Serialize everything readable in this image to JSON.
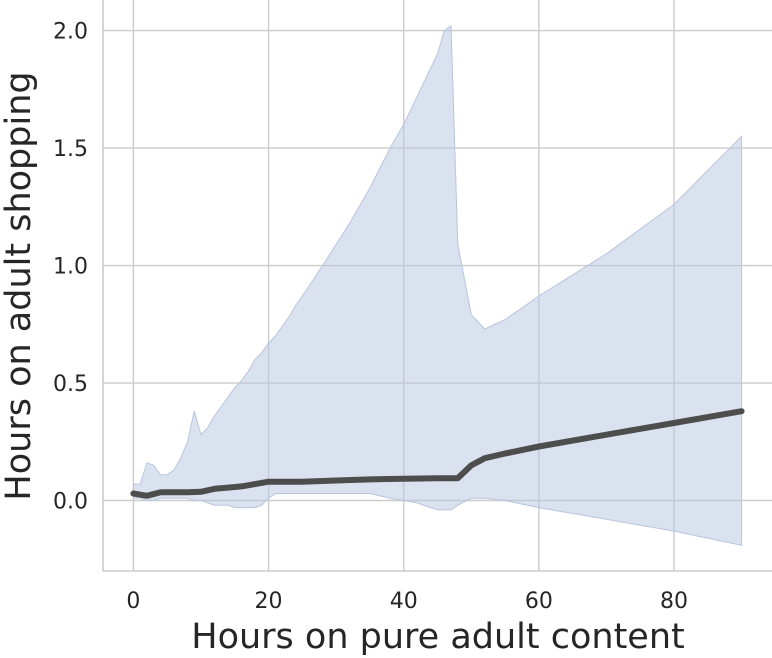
{
  "chart_data": {
    "type": "line",
    "title": "",
    "xlabel": "Hours on pure adult content",
    "ylabel": "Hours on adult shopping",
    "xlim": [
      -4.5,
      94.5
    ],
    "ylim": [
      -0.3,
      2.13
    ],
    "xticks": [
      0,
      20,
      40,
      60,
      80
    ],
    "yticks": [
      0.0,
      0.5,
      1.0,
      1.5,
      2.0
    ],
    "xtick_labels": [
      "0",
      "20",
      "40",
      "60",
      "80"
    ],
    "ytick_labels": [
      "0.0",
      "0.5",
      "1.0",
      "1.5",
      "2.0"
    ],
    "grid": true,
    "colors": {
      "line": "#4d4d4d",
      "band": "#b8c5df"
    },
    "series": [
      {
        "x": [
          0,
          2,
          4,
          6,
          8,
          10,
          12,
          14,
          16,
          18,
          20,
          22,
          25,
          30,
          35,
          40,
          45,
          48,
          50,
          52,
          55,
          60,
          70,
          80,
          90
        ],
        "values": [
          0.03,
          0.02,
          0.035,
          0.035,
          0.035,
          0.037,
          0.05,
          0.055,
          0.06,
          0.07,
          0.08,
          0.08,
          0.08,
          0.085,
          0.09,
          0.093,
          0.095,
          0.095,
          0.15,
          0.18,
          0.2,
          0.23,
          0.28,
          0.33,
          0.38
        ],
        "ci_x": [
          0,
          1,
          2,
          3,
          4,
          5,
          6,
          7,
          8,
          9,
          10,
          11,
          12,
          13,
          14,
          15,
          16,
          17,
          18,
          19,
          20,
          21,
          22,
          23,
          24,
          25,
          28,
          30,
          32,
          35,
          38,
          40,
          42,
          44,
          45,
          46,
          47,
          48,
          50,
          52,
          55,
          60,
          70,
          80,
          90
        ],
        "ci_upper": [
          0.07,
          0.07,
          0.16,
          0.15,
          0.11,
          0.11,
          0.13,
          0.18,
          0.25,
          0.38,
          0.28,
          0.31,
          0.36,
          0.4,
          0.44,
          0.48,
          0.51,
          0.55,
          0.6,
          0.63,
          0.67,
          0.7,
          0.74,
          0.78,
          0.83,
          0.87,
          1.0,
          1.09,
          1.18,
          1.33,
          1.5,
          1.6,
          1.72,
          1.84,
          1.9,
          2.0,
          2.02,
          1.09,
          0.79,
          0.73,
          0.77,
          0.87,
          1.05,
          1.26,
          1.55
        ],
        "ci_lower": [
          0.01,
          0.01,
          0.0,
          0.0,
          0.01,
          0.01,
          0.01,
          0.01,
          0.01,
          0.0,
          0.0,
          -0.01,
          -0.02,
          -0.02,
          -0.02,
          -0.03,
          -0.03,
          -0.03,
          -0.03,
          -0.02,
          0.01,
          0.03,
          0.03,
          0.03,
          0.03,
          0.03,
          0.03,
          0.03,
          0.03,
          0.03,
          0.01,
          0.0,
          -0.01,
          -0.03,
          -0.04,
          -0.04,
          -0.04,
          -0.02,
          0.01,
          0.01,
          0.0,
          -0.03,
          -0.08,
          -0.13,
          -0.19
        ]
      }
    ]
  }
}
